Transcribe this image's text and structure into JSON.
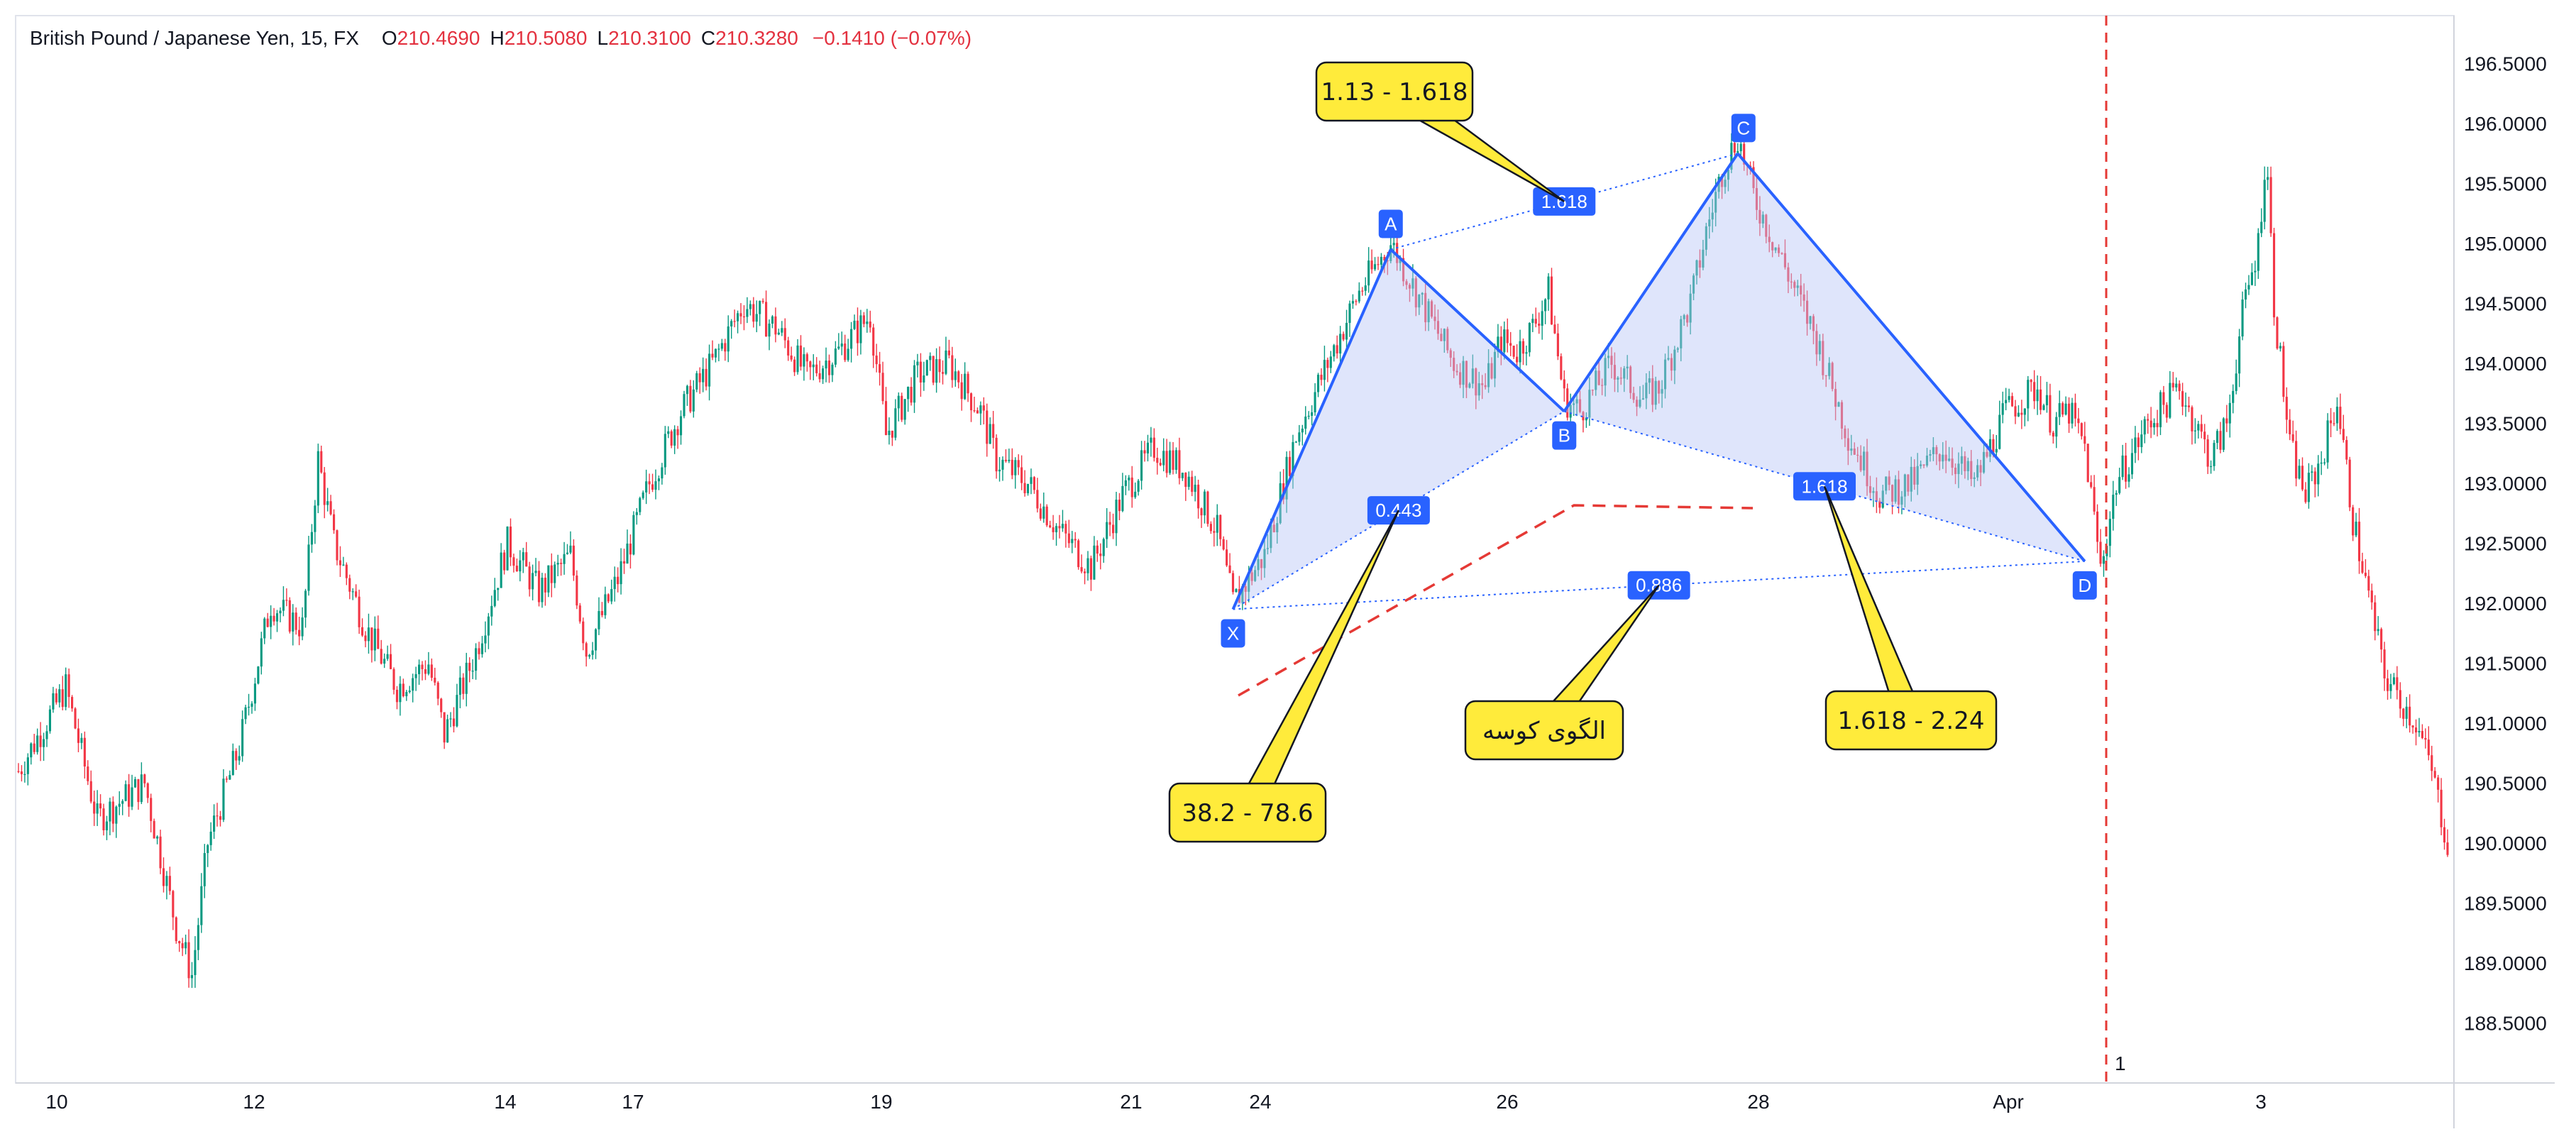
{
  "header": {
    "symbol": "British Pound / Japanese Yen, 15, FX",
    "open_label": "O",
    "open": "210.4690",
    "high_label": "H",
    "high": "210.5080",
    "low_label": "L",
    "low": "210.3100",
    "close_label": "C",
    "close": "210.3280",
    "change": "−0.1410 (−0.07%)"
  },
  "colors": {
    "up": "#089981",
    "down": "#f23645",
    "pattern_line": "#2962ff",
    "pattern_fill": "#b9c6f7",
    "badge": "#2962ff",
    "callout_fill": "#ffeb3b",
    "dashed_red": "#e53935",
    "grid": "#e9ecf2",
    "axis_text": "#131722"
  },
  "chart_data": {
    "type": "candlestick",
    "title": "British Pound / Japanese Yen, 15, FX",
    "y_axis": {
      "ticks": [
        "196.5000",
        "196.0000",
        "195.5000",
        "195.0000",
        "194.5000",
        "194.0000",
        "193.5000",
        "193.0000",
        "192.5000",
        "192.0000",
        "191.5000",
        "191.0000",
        "190.5000",
        "190.0000",
        "189.5000",
        "189.0000",
        "188.5000"
      ],
      "range": [
        188.0,
        196.9
      ]
    },
    "x_axis": {
      "ticks": [
        "10",
        "12",
        "14",
        "17",
        "19",
        "21",
        "24",
        "26",
        "28",
        "Apr",
        "3"
      ]
    },
    "price_path": [
      [
        0,
        190.6
      ],
      [
        3,
        191.3
      ],
      [
        5,
        190.2
      ],
      [
        8,
        190.5
      ],
      [
        10,
        189.3
      ],
      [
        11,
        188.9
      ],
      [
        12,
        190.0
      ],
      [
        14,
        190.8
      ],
      [
        16,
        192.0
      ],
      [
        18,
        191.8
      ],
      [
        19,
        193.2
      ],
      [
        20,
        192.5
      ],
      [
        22,
        191.8
      ],
      [
        24,
        191.3
      ],
      [
        26,
        191.5
      ],
      [
        27,
        190.9
      ],
      [
        29,
        191.6
      ],
      [
        31,
        192.5
      ],
      [
        33,
        192.1
      ],
      [
        35,
        192.4
      ],
      [
        36,
        191.6
      ],
      [
        38,
        192.2
      ],
      [
        40,
        193.0
      ],
      [
        42,
        193.6
      ],
      [
        44,
        194.0
      ],
      [
        46,
        194.5
      ],
      [
        48,
        194.3
      ],
      [
        50,
        193.9
      ],
      [
        52,
        194.1
      ],
      [
        54,
        194.4
      ],
      [
        55,
        193.4
      ],
      [
        57,
        193.9
      ],
      [
        59,
        194.0
      ],
      [
        61,
        193.6
      ],
      [
        62,
        193.2
      ],
      [
        64,
        193.0
      ],
      [
        66,
        192.6
      ],
      [
        68,
        192.3
      ],
      [
        70,
        192.9
      ],
      [
        72,
        193.3
      ],
      [
        74,
        193.1
      ],
      [
        76,
        192.6
      ],
      [
        77,
        192.0
      ],
      [
        79,
        192.4
      ],
      [
        81,
        193.4
      ],
      [
        83,
        194.0
      ],
      [
        85,
        194.6
      ],
      [
        87,
        195.0
      ],
      [
        89,
        194.5
      ],
      [
        91,
        194.0
      ],
      [
        93,
        193.8
      ],
      [
        94,
        194.2
      ],
      [
        95,
        194.1
      ],
      [
        96,
        194.3
      ],
      [
        97,
        194.6
      ],
      [
        98,
        193.7
      ],
      [
        99,
        193.6
      ],
      [
        101,
        194.0
      ],
      [
        103,
        193.7
      ],
      [
        104,
        193.8
      ],
      [
        106,
        194.5
      ],
      [
        107,
        195.1
      ],
      [
        108,
        195.6
      ],
      [
        109,
        195.9
      ],
      [
        110,
        195.4
      ],
      [
        112,
        194.8
      ],
      [
        114,
        194.2
      ],
      [
        116,
        193.4
      ],
      [
        118,
        192.9
      ],
      [
        120,
        193.0
      ],
      [
        122,
        193.3
      ],
      [
        124,
        193.0
      ],
      [
        126,
        193.6
      ],
      [
        128,
        193.8
      ],
      [
        129,
        193.5
      ],
      [
        130,
        193.6
      ],
      [
        131,
        193.3
      ],
      [
        132,
        192.3
      ],
      [
        133,
        193.0
      ],
      [
        135,
        193.5
      ],
      [
        137,
        193.8
      ],
      [
        139,
        193.2
      ],
      [
        140,
        193.5
      ],
      [
        141,
        194.4
      ],
      [
        142,
        195.0
      ],
      [
        142.5,
        195.8
      ],
      [
        143,
        194.5
      ],
      [
        144,
        193.3
      ],
      [
        145,
        192.9
      ],
      [
        146,
        193.2
      ],
      [
        147,
        193.7
      ],
      [
        148,
        192.7
      ],
      [
        150,
        191.4
      ],
      [
        152,
        191.0
      ],
      [
        153,
        190.6
      ],
      [
        154,
        190.0
      ],
      [
        154.5,
        189.7
      ]
    ],
    "n_bars": 155,
    "harmonic_pattern": {
      "name": "الگوی کوسه",
      "points": [
        {
          "label": "X",
          "bar": 77,
          "price": 191.95
        },
        {
          "label": "A",
          "bar": 87,
          "price": 194.95
        },
        {
          "label": "B",
          "bar": 98,
          "price": 193.6
        },
        {
          "label": "C",
          "bar": 109,
          "price": 195.75
        },
        {
          "label": "D",
          "bar": 131,
          "price": 192.35
        }
      ],
      "ratios": [
        {
          "label": "1.618",
          "between": [
            "A",
            "C"
          ]
        },
        {
          "label": "0.443",
          "between": [
            "X",
            "B"
          ]
        },
        {
          "label": "1.618",
          "between": [
            "B",
            "D"
          ]
        },
        {
          "label": "0.886",
          "between": [
            "X",
            "D"
          ]
        }
      ]
    },
    "callouts": [
      {
        "text": "1.13 - 1.618",
        "target": "ratio_AC"
      },
      {
        "text": "38.2 - 78.6",
        "target": "ratio_XB"
      },
      {
        "text": "الگوی کوسه",
        "target": "ratio_XD"
      },
      {
        "text": "1.618 - 2.24",
        "target": "ratio_BD"
      }
    ],
    "vertical_marker": {
      "bar": 132,
      "label": "1"
    }
  }
}
